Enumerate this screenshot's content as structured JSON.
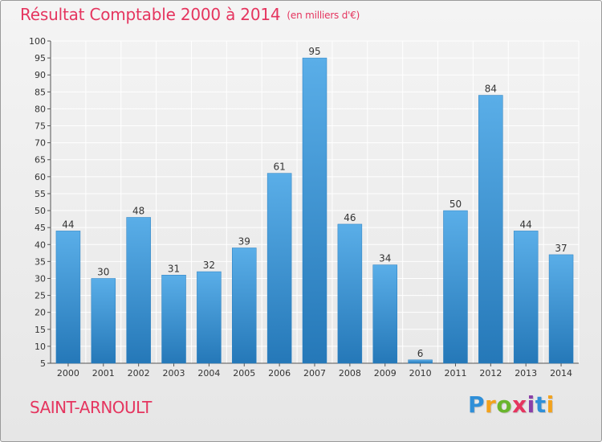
{
  "header": {
    "title": "Résultat Comptable 2000 à 2014",
    "unit": "(en milliers d'€)"
  },
  "footer": {
    "commune": "SAINT-ARNOULT",
    "logo_letters": [
      "P",
      "r",
      "o",
      "x",
      "i",
      "t",
      "i"
    ]
  },
  "colors": {
    "title": "#e5355f",
    "bar_top": "#5aaee8",
    "bar_bottom": "#2578b8",
    "axis": "#555555"
  },
  "chart_data": {
    "type": "bar",
    "title": "Résultat Comptable 2000 à 2014",
    "xlabel": "",
    "ylabel": "",
    "categories": [
      "2000",
      "2001",
      "2002",
      "2003",
      "2004",
      "2005",
      "2006",
      "2007",
      "2008",
      "2009",
      "2010",
      "2011",
      "2012",
      "2013",
      "2014"
    ],
    "values": [
      44,
      30,
      48,
      31,
      32,
      39,
      61,
      95,
      46,
      34,
      6,
      50,
      84,
      44,
      37
    ],
    "ylim": [
      5,
      100
    ],
    "yticks": [
      5,
      10,
      15,
      20,
      25,
      30,
      35,
      40,
      45,
      50,
      55,
      60,
      65,
      70,
      75,
      80,
      85,
      90,
      95,
      100
    ],
    "grid": true,
    "data_labels": true
  }
}
